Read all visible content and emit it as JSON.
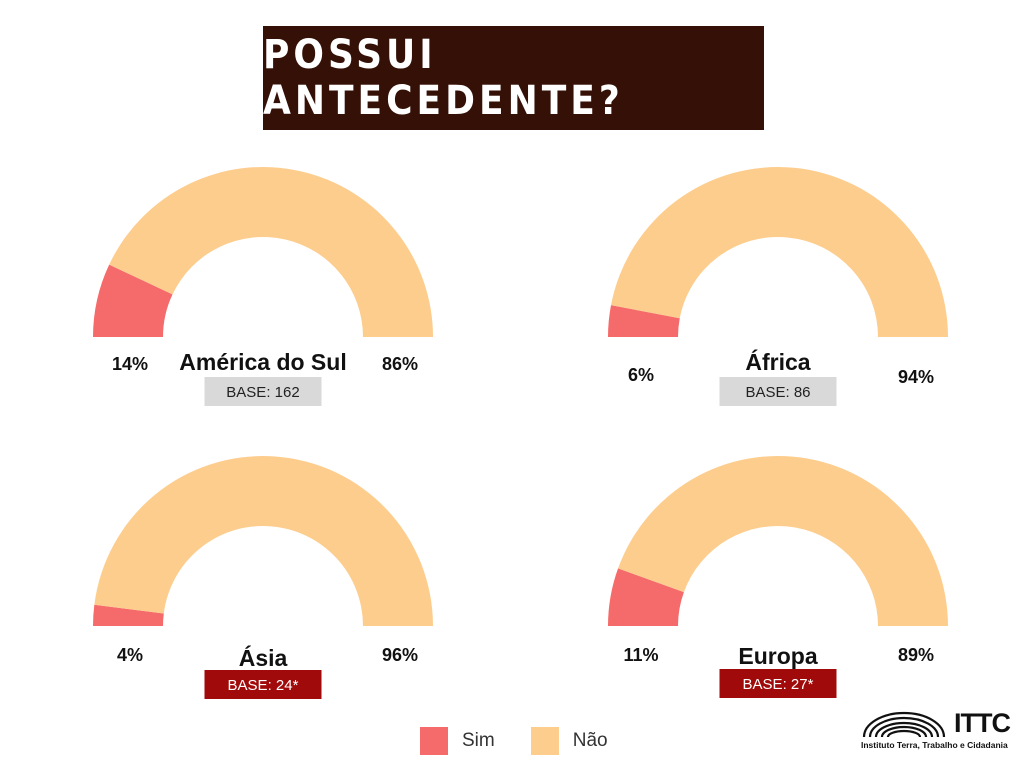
{
  "title": "POSSUI ANTECEDENTE?",
  "colors": {
    "title_bg": "#351006",
    "sim": "#f56b6b",
    "nao": "#fdcd8e",
    "base_gray": "#d9d9d9",
    "base_red": "#a10a0a"
  },
  "chart_data": [
    {
      "type": "pie",
      "name": "América do Sul",
      "categories": [
        "Sim",
        "Não"
      ],
      "values": [
        14,
        86
      ],
      "labels": [
        "14%",
        "86%"
      ],
      "base": "BASE: 162",
      "base_style": "gray"
    },
    {
      "type": "pie",
      "name": "África",
      "categories": [
        "Sim",
        "Não"
      ],
      "values": [
        6,
        94
      ],
      "labels": [
        "6%",
        "94%"
      ],
      "base": "BASE: 86",
      "base_style": "gray"
    },
    {
      "type": "pie",
      "name": "Ásia",
      "categories": [
        "Sim",
        "Não"
      ],
      "values": [
        4,
        96
      ],
      "labels": [
        "4%",
        "96%"
      ],
      "base": "BASE: 24*",
      "base_style": "red"
    },
    {
      "type": "pie",
      "name": "Europa",
      "categories": [
        "Sim",
        "Não"
      ],
      "values": [
        11,
        89
      ],
      "labels": [
        "11%",
        "89%"
      ],
      "base": "BASE: 27*",
      "base_style": "red"
    }
  ],
  "legend": [
    {
      "label": "Sim",
      "color": "#f56b6b"
    },
    {
      "label": "Não",
      "color": "#fdcd8e"
    }
  ],
  "logo": {
    "name": "ITTC",
    "subtitle": "Instituto Terra, Trabalho e Cidadania",
    "icon": "arches-logo-icon"
  }
}
